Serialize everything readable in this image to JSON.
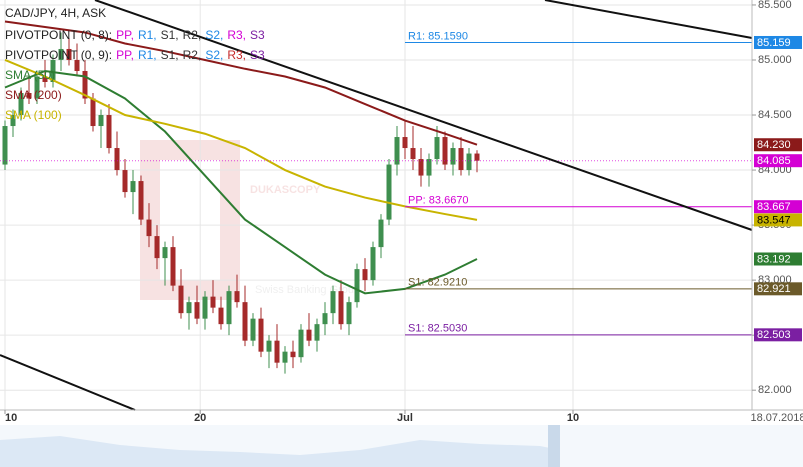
{
  "chart_data": {
    "type": "candlestick",
    "title": "CAD/JPY, 4H, ASK",
    "pivot_legends": [
      {
        "prefix": "PIVOTPOINT (0, 8):",
        "items": [
          {
            "text": "PP,",
            "color": "#d400d4"
          },
          {
            "text": "R1,",
            "color": "#1e88e5"
          },
          {
            "text": "S1,",
            "color": "#333333"
          },
          {
            "text": "R2,",
            "color": "#333333"
          },
          {
            "text": "S2,",
            "color": "#1e88e5"
          },
          {
            "text": "R3,",
            "color": "#d400d4"
          },
          {
            "text": "S3",
            "color": "#7b1fa2"
          }
        ]
      },
      {
        "prefix": "PIVOTPOINT (0, 9):",
        "items": [
          {
            "text": "PP,",
            "color": "#d400d4"
          },
          {
            "text": "R1,",
            "color": "#1e88e5"
          },
          {
            "text": "S1,",
            "color": "#333333"
          },
          {
            "text": "R2,",
            "color": "#333333"
          },
          {
            "text": "S2,",
            "color": "#1e88e5"
          },
          {
            "text": "R3,",
            "color": "#c62828"
          },
          {
            "text": "S3",
            "color": "#7b1fa2"
          }
        ]
      }
    ],
    "watermark": {
      "brand": "DUKASCOPY",
      "tagline": "Swiss Banking Group"
    },
    "date_label": "18.07.2018",
    "up_color": "#3f8f4f",
    "down_color": "#a52a2a",
    "x": [
      0,
      1,
      2,
      3,
      4,
      5,
      6,
      7,
      8,
      9,
      10,
      11,
      12,
      13,
      14,
      15,
      16,
      17,
      18,
      19,
      20,
      21,
      22,
      23,
      24,
      25,
      26,
      27,
      28,
      29,
      30,
      31,
      32,
      33,
      34,
      35,
      36,
      37,
      38,
      39,
      40,
      41,
      42,
      43,
      44,
      45,
      46,
      47,
      48,
      49,
      50,
      51,
      52,
      53,
      54,
      55,
      56,
      57,
      58,
      59
    ],
    "open": [
      84.05,
      84.4,
      84.5,
      84.7,
      84.65,
      84.85,
      84.8,
      85.0,
      85.1,
      85.0,
      84.9,
      84.65,
      84.4,
      84.5,
      84.2,
      84.0,
      83.8,
      83.9,
      83.55,
      83.4,
      83.2,
      83.3,
      82.95,
      82.7,
      82.8,
      82.65,
      82.85,
      82.75,
      82.6,
      82.9,
      82.8,
      82.45,
      82.65,
      82.35,
      82.45,
      82.25,
      82.35,
      82.3,
      82.55,
      82.45,
      82.6,
      82.7,
      82.9,
      82.6,
      82.8,
      83.1,
      83.0,
      83.3,
      83.55,
      84.05,
      84.3,
      84.2,
      84.1,
      83.95,
      84.1,
      84.3,
      84.05,
      84.2,
      84.0,
      84.15
    ],
    "high": [
      84.45,
      84.55,
      84.75,
      84.85,
      84.9,
      85.0,
      85.05,
      85.25,
      85.2,
      85.15,
      85.0,
      84.7,
      84.55,
      84.6,
      84.35,
      84.1,
      84.0,
      83.95,
      83.7,
      83.5,
      83.35,
      83.4,
      83.1,
      82.85,
      82.95,
      82.9,
      83.0,
      82.85,
      82.95,
      83.05,
      82.95,
      82.7,
      82.75,
      82.5,
      82.6,
      82.4,
      82.45,
      82.6,
      82.7,
      82.65,
      82.8,
      82.95,
      83.0,
      82.85,
      83.15,
      83.2,
      83.35,
      83.6,
      84.1,
      84.4,
      84.45,
      84.4,
      84.2,
      84.15,
      84.4,
      84.35,
      84.25,
      84.3,
      84.2,
      84.18
    ],
    "low": [
      84.0,
      84.3,
      84.45,
      84.6,
      84.6,
      84.75,
      84.75,
      84.9,
      84.95,
      84.85,
      84.6,
      84.35,
      84.2,
      84.15,
      83.95,
      83.75,
      83.6,
      83.5,
      83.3,
      83.1,
      82.95,
      82.9,
      82.65,
      82.55,
      82.6,
      82.55,
      82.7,
      82.55,
      82.5,
      82.75,
      82.4,
      82.4,
      82.3,
      82.2,
      82.2,
      82.15,
      82.2,
      82.25,
      82.4,
      82.35,
      82.5,
      82.6,
      82.55,
      82.5,
      82.75,
      82.9,
      82.95,
      83.2,
      83.5,
      83.95,
      84.1,
      84.0,
      83.85,
      83.85,
      84.05,
      84.0,
      83.95,
      83.95,
      83.95,
      83.98
    ],
    "close": [
      84.4,
      84.5,
      84.7,
      84.65,
      84.85,
      84.8,
      85.0,
      85.1,
      85.0,
      84.9,
      84.65,
      84.4,
      84.5,
      84.2,
      84.0,
      83.8,
      83.9,
      83.55,
      83.4,
      83.2,
      83.3,
      82.95,
      82.7,
      82.8,
      82.65,
      82.85,
      82.75,
      82.6,
      82.9,
      82.8,
      82.45,
      82.65,
      82.35,
      82.45,
      82.25,
      82.35,
      82.3,
      82.55,
      82.45,
      82.6,
      82.7,
      82.9,
      82.6,
      82.8,
      83.1,
      83.0,
      83.3,
      83.55,
      84.05,
      84.3,
      84.2,
      84.1,
      83.95,
      84.1,
      84.3,
      84.05,
      84.2,
      84.0,
      84.15,
      84.085
    ],
    "series": [
      {
        "name": "SMA (50)",
        "color": "#2e7d32",
        "x": [
          0,
          5,
          10,
          15,
          20,
          25,
          30,
          35,
          40,
          45,
          50,
          55,
          59
        ],
        "values": [
          84.75,
          84.9,
          84.85,
          84.65,
          84.35,
          83.95,
          83.55,
          83.3,
          83.05,
          82.88,
          82.92,
          83.05,
          83.192
        ]
      },
      {
        "name": "SMA (200)",
        "color": "#8b1a1a",
        "x": [
          0,
          5,
          10,
          15,
          20,
          25,
          30,
          35,
          40,
          45,
          50,
          55,
          59
        ],
        "values": [
          85.35,
          85.3,
          85.25,
          85.15,
          85.08,
          85.0,
          84.92,
          84.85,
          84.75,
          84.6,
          84.45,
          84.33,
          84.23
        ]
      },
      {
        "name": "SMA (100)",
        "color": "#c8b400",
        "x": [
          0,
          5,
          10,
          15,
          20,
          25,
          30,
          35,
          40,
          45,
          50,
          55,
          59
        ],
        "values": [
          85.0,
          84.85,
          84.68,
          84.5,
          84.42,
          84.33,
          84.2,
          84.0,
          83.85,
          83.75,
          83.67,
          83.6,
          83.547
        ]
      }
    ],
    "pivot_lines": [
      {
        "label": "R1: 85.1590",
        "value": 85.159,
        "color": "#1e88e5"
      },
      {
        "label": "PP: 83.6670",
        "value": 83.667,
        "color": "#d400d4"
      },
      {
        "label": "S1: 82.9210",
        "value": 82.921,
        "color": "#6b5a2a"
      },
      {
        "label": "S1: 82.5030",
        "value": 82.503,
        "color": "#7b1fa2"
      }
    ],
    "price_tags": [
      {
        "value": 85.159,
        "label": "85.159",
        "color": "#1e88e5"
      },
      {
        "value": 84.23,
        "label": "84.230",
        "color": "#8b1a1a"
      },
      {
        "value": 84.085,
        "label": "84.085",
        "color": "#d400d4"
      },
      {
        "value": 83.667,
        "label": "83.667",
        "color": "#d400d4"
      },
      {
        "value": 83.547,
        "label": "83.547",
        "color": "#c8b400"
      },
      {
        "value": 83.192,
        "label": "83.192",
        "color": "#2e7d32"
      },
      {
        "value": 82.921,
        "label": "82.921",
        "color": "#6b5a2a"
      },
      {
        "value": 82.503,
        "label": "82.503",
        "color": "#7b1fa2"
      }
    ],
    "xlim": [
      -0.625,
      93.375
    ],
    "xticks": [
      {
        "value": 0,
        "label": "10"
      },
      {
        "value": 24.4,
        "label": "20"
      },
      {
        "value": 50,
        "label": "Jul"
      },
      {
        "value": 71,
        "label": "10"
      }
    ],
    "ylim": [
      81.82,
      85.545
    ],
    "yticks": [
      {
        "value": 82.0,
        "label": "82.000"
      },
      {
        "value": 82.5,
        "label": "82.500"
      },
      {
        "value": 83.0,
        "label": "83.000"
      },
      {
        "value": 83.5,
        "label": "83.500"
      },
      {
        "value": 84.0,
        "label": "84.000"
      },
      {
        "value": 84.5,
        "label": "84.500"
      },
      {
        "value": 85.0,
        "label": "85.000"
      },
      {
        "value": 85.5,
        "label": "85.500"
      }
    ],
    "grid": true
  }
}
